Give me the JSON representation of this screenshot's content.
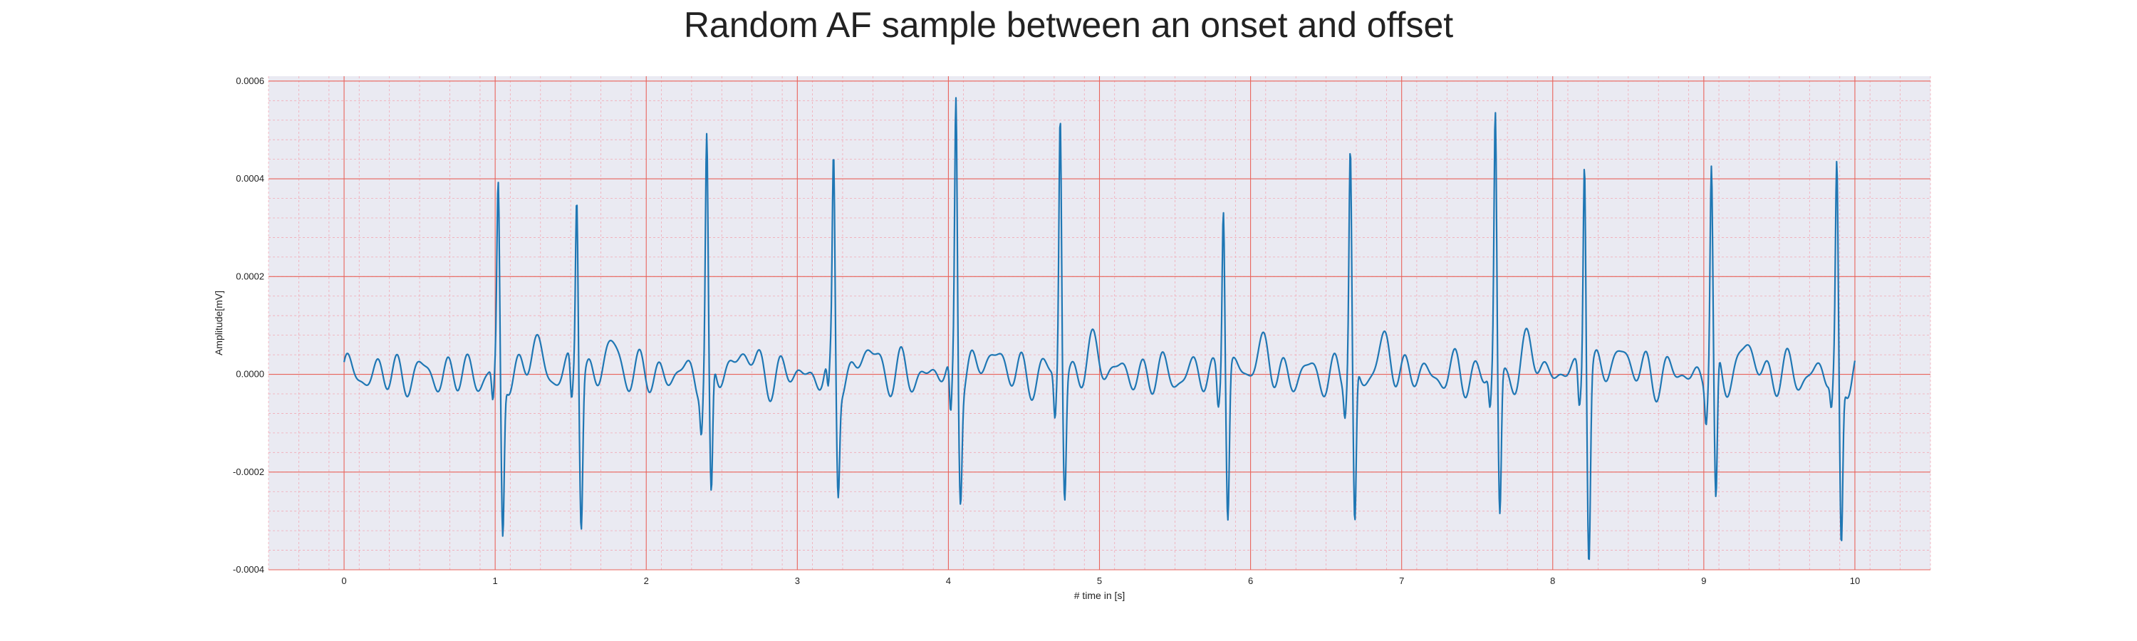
{
  "chart_data": {
    "type": "line",
    "title": "Random AF sample between an onset and offset",
    "xlabel": "# time in [s]",
    "ylabel": "Amplitude[mV]",
    "xlim": [
      -0.5,
      10.5
    ],
    "ylim": [
      -0.0004,
      0.00061
    ],
    "xticks": [
      0,
      1,
      2,
      3,
      4,
      5,
      6,
      7,
      8,
      9,
      10
    ],
    "xtick_labels": [
      "0",
      "1",
      "2",
      "3",
      "4",
      "5",
      "6",
      "7",
      "8",
      "9",
      "10"
    ],
    "yticks": [
      -0.0004,
      -0.0002,
      0.0,
      0.0002,
      0.0004,
      0.0006
    ],
    "ytick_labels": [
      "-0.0004",
      "-0.0002",
      "0.0000",
      "0.0002",
      "0.0004",
      "0.0006"
    ],
    "grid": true,
    "minor_grid": true,
    "series": [
      {
        "color": "#1f77b4",
        "beats": [
          {
            "t": 1.02,
            "peak": 0.000365,
            "trough": -0.000335,
            "pre": -7e-05
          },
          {
            "t": 1.54,
            "peak": 0.00039,
            "trough": -0.000285,
            "pre": -8e-05
          },
          {
            "t": 2.4,
            "peak": 0.00047,
            "trough": -0.000285,
            "pre": -8e-05
          },
          {
            "t": 3.24,
            "peak": 0.00042,
            "trough": -0.00022,
            "pre": -7e-05
          },
          {
            "t": 4.05,
            "peak": 0.000575,
            "trough": -0.000215,
            "pre": -0.00011
          },
          {
            "t": 4.74,
            "peak": 0.000545,
            "trough": -0.00024,
            "pre": -9e-05
          },
          {
            "t": 5.82,
            "peak": 0.000375,
            "trough": -0.000295,
            "pre": -6e-05
          },
          {
            "t": 6.66,
            "peak": 0.00045,
            "trough": -0.00033,
            "pre": -6e-05
          },
          {
            "t": 7.62,
            "peak": 0.00053,
            "trough": -0.000295,
            "pre": -7e-05
          },
          {
            "t": 8.21,
            "peak": 0.00048,
            "trough": -0.000355,
            "pre": -7e-05
          },
          {
            "t": 9.05,
            "peak": 0.00042,
            "trough": -0.000305,
            "pre": -7e-05
          },
          {
            "t": 9.88,
            "peak": 0.000405,
            "trough": -0.000355,
            "pre": -6e-05
          }
        ],
        "fibrillatory_amplitude": 3e-05,
        "t_range": [
          0,
          10
        ]
      }
    ]
  },
  "colors": {
    "axes_bg": "#eaeaf2",
    "major_grid": "#e8635b",
    "minor_grid": "#f2a9b5",
    "line": "#1f77b4"
  }
}
